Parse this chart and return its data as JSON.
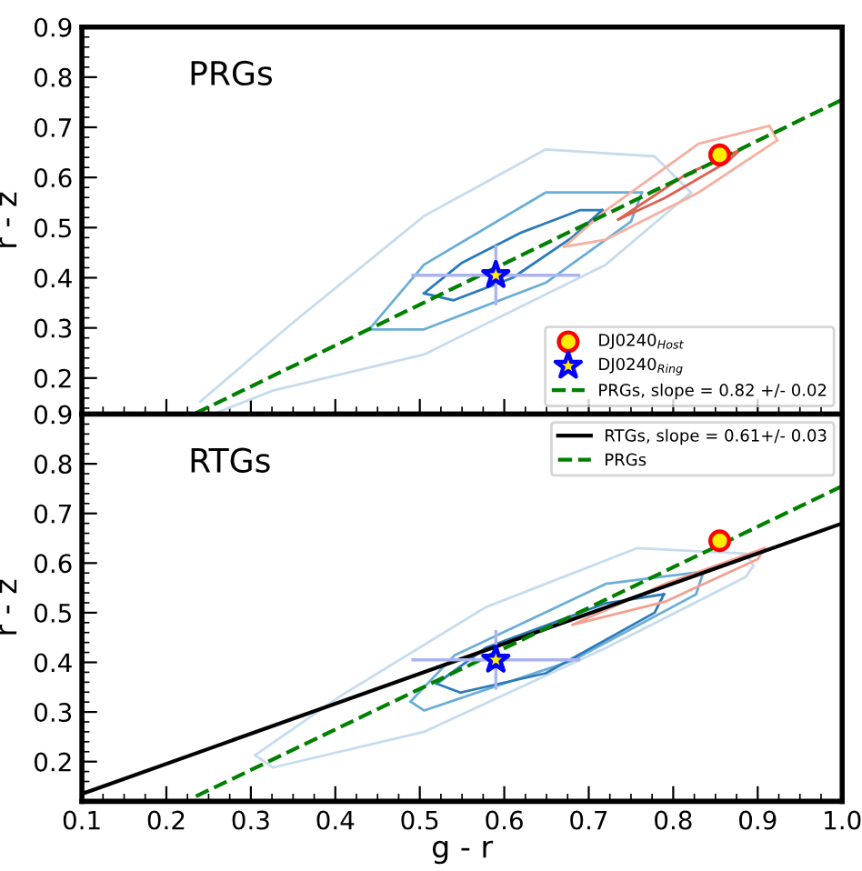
{
  "chart_data": [
    {
      "type": "line",
      "ylabel": "r - z",
      "annotations": [
        "PRGs"
      ],
      "xlim": [
        0.1,
        1.0
      ],
      "ylim": [
        0.128,
        0.9
      ],
      "xticks": [
        0.1,
        0.2,
        0.3,
        0.4,
        0.5,
        0.6,
        0.7,
        0.8,
        0.9,
        1.0
      ],
      "yticks": [
        0.2,
        0.3,
        0.4,
        0.5,
        0.6,
        0.7,
        0.8,
        0.9
      ],
      "tick_labels": "y",
      "legend": "bottom right",
      "series": [
        {
          "color": "#c6dcee",
          "x": [
            0.24,
            0.348,
            0.505,
            0.649,
            0.778,
            0.821
          ],
          "values": [
            0.153,
            0.308,
            0.523,
            0.656,
            0.642,
            0.57
          ]
        },
        {
          "color": "#c6dcee",
          "x": [
            0.255,
            0.326,
            0.505,
            0.72,
            0.821
          ],
          "values": [
            0.128,
            0.175,
            0.247,
            0.426,
            0.57
          ]
        },
        {
          "color": "#6aaed6",
          "x": [
            0.44,
            0.505,
            0.649,
            0.763
          ],
          "values": [
            0.297,
            0.426,
            0.57,
            0.57
          ]
        },
        {
          "color": "#6aaed6",
          "x": [
            0.44,
            0.505,
            0.649,
            0.75,
            0.763
          ],
          "values": [
            0.297,
            0.297,
            0.39,
            0.512,
            0.57
          ]
        },
        {
          "color": "#2b7bba",
          "x": [
            0.505,
            0.55,
            0.62,
            0.69,
            0.716
          ],
          "values": [
            0.369,
            0.43,
            0.49,
            0.535,
            0.535
          ]
        },
        {
          "color": "#2b7bba",
          "x": [
            0.505,
            0.54,
            0.61,
            0.68,
            0.716
          ],
          "values": [
            0.369,
            0.355,
            0.4,
            0.48,
            0.535
          ]
        },
        {
          "color": "#f4b0a0",
          "x": [
            0.671,
            0.72,
            0.83,
            0.914,
            0.923
          ],
          "values": [
            0.462,
            0.534,
            0.667,
            0.703,
            0.674
          ]
        },
        {
          "color": "#f4b0a0",
          "x": [
            0.671,
            0.72,
            0.83,
            0.923
          ],
          "values": [
            0.462,
            0.476,
            0.57,
            0.674
          ]
        },
        {
          "color": "#e06050",
          "x": [
            0.735,
            0.815,
            0.88
          ],
          "values": [
            0.516,
            0.606,
            0.656
          ]
        },
        {
          "color": "#e06050",
          "x": [
            0.735,
            0.79,
            0.864,
            0.88
          ],
          "values": [
            0.516,
            0.559,
            0.631,
            0.656
          ]
        },
        {
          "type": "scatter",
          "name": "DJ0240$_{Host}$",
          "color": "#ff0000",
          "marker": "circle",
          "x": [
            0.855
          ],
          "values": [
            0.645
          ]
        },
        {
          "type": "scatter",
          "name": "DJ0240$_{Ring}$",
          "color": "#0000ff",
          "marker": "star",
          "x": [
            0.59
          ],
          "values": [
            0.405
          ],
          "errors": [
            0.06
          ],
          "xerrors": [
            0.1
          ]
        },
        {
          "name": "PRGs, slope = 0.82 +/- 0.02",
          "color": "#008000",
          "line_style": "dashed",
          "x": [
            0.235,
            1.0
          ],
          "values": [
            0.13,
            0.755
          ]
        }
      ]
    },
    {
      "type": "line",
      "xlabel": "g - r",
      "ylabel": "r - z",
      "annotations": [
        "RTGs"
      ],
      "xlim": [
        0.1,
        1.0
      ],
      "ylim": [
        0.12,
        0.9
      ],
      "xticks": [
        0.1,
        0.2,
        0.3,
        0.4,
        0.5,
        0.6,
        0.7,
        0.8,
        0.9,
        {
          "value": 1.0,
          "label": "1.0"
        }
      ],
      "yticks": [
        0.2,
        0.3,
        0.4,
        0.5,
        0.6,
        0.7,
        0.8,
        0.9
      ],
      "legend": "top right",
      "series": [
        {
          "color": "#c6dcee",
          "x": [
            0.305,
            0.406,
            0.578,
            0.757,
            0.886,
            0.895
          ],
          "values": [
            0.213,
            0.332,
            0.511,
            0.63,
            0.619,
            0.595
          ]
        },
        {
          "color": "#c6dcee",
          "x": [
            0.305,
            0.326,
            0.505,
            0.72,
            0.886,
            0.895
          ],
          "values": [
            0.213,
            0.188,
            0.26,
            0.429,
            0.572,
            0.595
          ]
        },
        {
          "color": "#6aaed6",
          "x": [
            0.489,
            0.541,
            0.72,
            0.836
          ],
          "values": [
            0.321,
            0.414,
            0.558,
            0.583
          ]
        },
        {
          "color": "#6aaed6",
          "x": [
            0.489,
            0.505,
            0.681,
            0.827,
            0.836
          ],
          "values": [
            0.321,
            0.303,
            0.404,
            0.537,
            0.583
          ]
        },
        {
          "color": "#2b7bba",
          "x": [
            0.52,
            0.578,
            0.72,
            0.789
          ],
          "values": [
            0.357,
            0.429,
            0.519,
            0.537
          ]
        },
        {
          "color": "#2b7bba",
          "x": [
            0.52,
            0.548,
            0.649,
            0.778,
            0.789
          ],
          "values": [
            0.357,
            0.339,
            0.378,
            0.5,
            0.537
          ]
        },
        {
          "color": "#f4a090",
          "x": [
            0.681,
            0.79,
            0.908
          ],
          "values": [
            0.476,
            0.558,
            0.63
          ]
        },
        {
          "color": "#f4a090",
          "x": [
            0.681,
            0.79,
            0.9,
            0.908
          ],
          "values": [
            0.476,
            0.522,
            0.608,
            0.63
          ]
        },
        {
          "type": "scatter",
          "color": "#ff0000",
          "marker": "circle",
          "x": [
            0.855
          ],
          "values": [
            0.645
          ]
        },
        {
          "type": "scatter",
          "color": "#0000ff",
          "marker": "star",
          "x": [
            0.59
          ],
          "values": [
            0.405
          ],
          "errors": [
            0.06
          ],
          "xerrors": [
            0.1
          ]
        },
        {
          "name": "RTGs, slope = 0.61+/- 0.03",
          "color": "#000000",
          "x": [
            0.1,
            1.0
          ],
          "values": [
            0.135,
            0.68
          ]
        },
        {
          "name": "PRGs",
          "color": "#008000",
          "line_style": "dashed",
          "x": [
            0.235,
            1.0
          ],
          "values": [
            0.13,
            0.755
          ]
        }
      ]
    }
  ]
}
